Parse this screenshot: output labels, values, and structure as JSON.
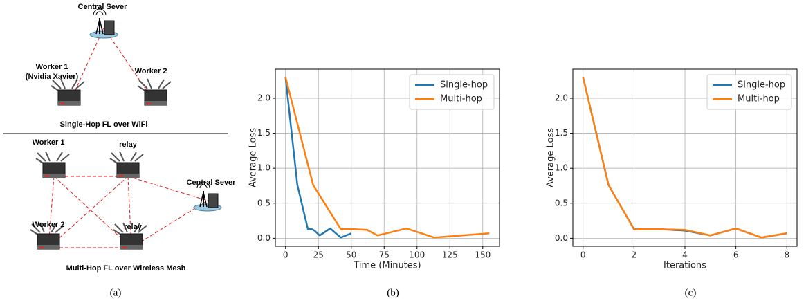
{
  "diagram": {
    "caption": "(a)",
    "single_hop": {
      "title": "Single-Hop FL over WiFi",
      "nodes": [
        {
          "label": "Central Sever"
        },
        {
          "label": "Worker 1",
          "sublabel": "(Nvidia Xavier)"
        },
        {
          "label": "Worker 2"
        }
      ]
    },
    "multi_hop": {
      "title": "Multi-Hop FL over Wireless Mesh",
      "nodes": [
        {
          "label": "Worker 1"
        },
        {
          "label": "relay"
        },
        {
          "label": "Central Sever"
        },
        {
          "label": "Worker 2"
        },
        {
          "label": "relay"
        }
      ]
    }
  },
  "chart_data": [
    {
      "type": "line",
      "caption": "(b)",
      "xlabel": "Time (Minutes)",
      "ylabel": "Average Loss",
      "series": [
        {
          "name": "Single-hop",
          "color": "#1f77b4",
          "x": [
            0,
            9,
            17,
            20,
            22,
            26,
            34,
            42,
            50
          ],
          "values": [
            2.3,
            0.76,
            0.13,
            0.13,
            0.11,
            0.04,
            0.14,
            0.01,
            0.07
          ]
        },
        {
          "name": "Multi-hop",
          "color": "#ff7f0e",
          "x": [
            0,
            21,
            42,
            52,
            62,
            70,
            92,
            113,
            155
          ],
          "values": [
            2.3,
            0.76,
            0.13,
            0.13,
            0.12,
            0.04,
            0.14,
            0.01,
            0.07
          ]
        }
      ],
      "xlim": [
        -7.75,
        162.75
      ],
      "ylim": [
        -0.115,
        2.415
      ],
      "xticks": [
        0,
        25,
        50,
        75,
        100,
        125,
        150
      ],
      "yticks": [
        {
          "value": 0,
          "label": "0.0"
        },
        {
          "value": 0.5,
          "label": "0.5"
        },
        {
          "value": 1,
          "label": "1.0"
        },
        {
          "value": 1.5,
          "label": "1.5"
        },
        {
          "value": 2,
          "label": "2.0"
        }
      ],
      "grid": true,
      "legend": "upper right"
    },
    {
      "type": "line",
      "caption": "(c)",
      "xlabel": "Iterations",
      "ylabel": "Average Loss",
      "x": [
        0,
        1,
        2,
        3,
        4,
        5,
        6,
        7,
        8
      ],
      "series": [
        {
          "name": "Single-hop",
          "color": "#1f77b4",
          "values": [
            2.3,
            0.76,
            0.13,
            0.13,
            0.11,
            0.04,
            0.14,
            0.01,
            0.07
          ]
        },
        {
          "name": "Multi-hop",
          "color": "#ff7f0e",
          "values": [
            2.3,
            0.76,
            0.13,
            0.13,
            0.12,
            0.04,
            0.14,
            0.01,
            0.07
          ]
        }
      ],
      "xlim": [
        -0.4,
        8.4
      ],
      "ylim": [
        -0.115,
        2.415
      ],
      "xticks": [
        0,
        2,
        4,
        6,
        8
      ],
      "yticks": [
        {
          "value": 0,
          "label": "0.0"
        },
        {
          "value": 0.5,
          "label": "0.5"
        },
        {
          "value": 1,
          "label": "1.0"
        },
        {
          "value": 1.5,
          "label": "1.5"
        },
        {
          "value": 2,
          "label": "2.0"
        }
      ],
      "grid": true,
      "legend": "upper right"
    }
  ]
}
